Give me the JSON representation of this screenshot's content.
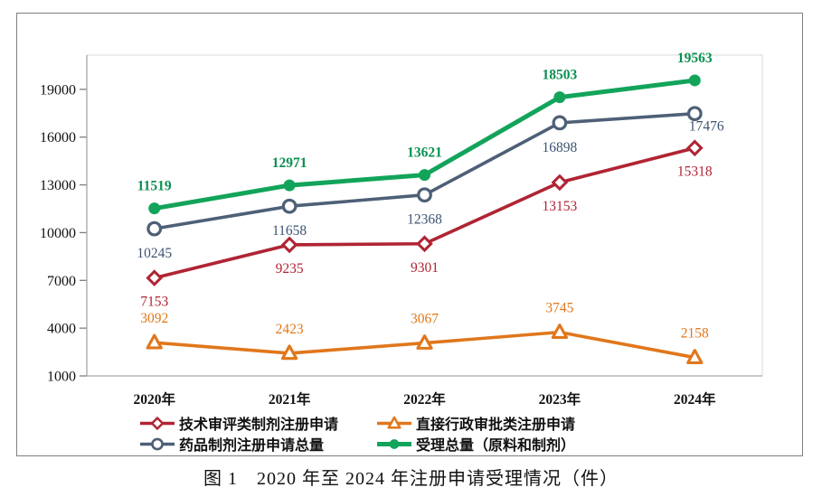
{
  "chart": {
    "caption": "图 1　2020 年至 2024 年注册申请受理情况（件）"
  },
  "chart_data": {
    "type": "line",
    "title": "",
    "xlabel": "",
    "ylabel": "",
    "grid": false,
    "legend_position": "bottom",
    "categories": [
      "2020年",
      "2021年",
      "2022年",
      "2023年",
      "2024年"
    ],
    "y_ticks": [
      1000,
      4000,
      7000,
      10000,
      13000,
      16000,
      19000
    ],
    "ylim": [
      1000,
      21150
    ],
    "series": [
      {
        "key": "tech-review-preparation-applications",
        "name": "技术审评类制剂注册申请",
        "values": [
          7153,
          9235,
          9301,
          13153,
          15318
        ],
        "color": "#B02433",
        "label_color": "#B02433",
        "marker": "diamond-open",
        "line_width": 3.6,
        "bold_labels": false,
        "label_dy": 31,
        "label_overrides": {}
      },
      {
        "key": "direct-admin-approval-applications",
        "name": "直接行政审批类注册申请",
        "values": [
          3092,
          2423,
          3067,
          3745,
          2158
        ],
        "color": "#E0771C",
        "label_color": "#E0771C",
        "marker": "triangle-open",
        "line_width": 3.6,
        "bold_labels": false,
        "label_dy": -22,
        "label_overrides": {}
      },
      {
        "key": "drug-preparation-applications-total",
        "name": "药品制剂注册申请总量",
        "values": [
          10245,
          11658,
          12368,
          16898,
          17476
        ],
        "color": "#4E6077",
        "label_color": "#3D5373",
        "marker": "circle-open",
        "line_width": 3.6,
        "bold_labels": false,
        "label_dy": 32,
        "label_overrides": {
          "4": {
            "dx": 13,
            "dy": 19
          }
        }
      },
      {
        "key": "total-acceptance-api-and-preparation",
        "name": "受理总量（原料和制剂）",
        "values": [
          11519,
          12971,
          13621,
          18503,
          19563
        ],
        "color": "#12A45A",
        "label_color": "#0A9150",
        "marker": "circle-filled",
        "line_width": 5,
        "bold_labels": true,
        "label_dy": -20,
        "label_overrides": {}
      }
    ]
  }
}
